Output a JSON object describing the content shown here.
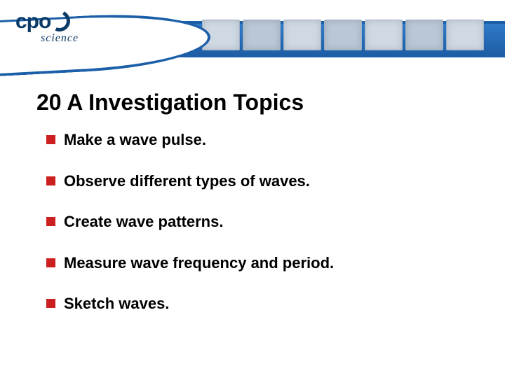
{
  "logo": {
    "primary": "cpo",
    "secondary": "science",
    "brand_color": "#0a3a67"
  },
  "header": {
    "band_top_color": "#1b5fa8",
    "band_gradient_from": "#2f7ac7",
    "band_gradient_to": "#1e5ea6"
  },
  "title": "20 A  Investigation Topics",
  "title_fontsize": 32,
  "title_color": "#000000",
  "bullet_marker_color": "#cc1f1f",
  "bullet_fontsize": 22,
  "bullet_color": "#000000",
  "bullets": [
    {
      "text": "Make a wave pulse."
    },
    {
      "text": "Observe different types of waves."
    },
    {
      "text": "Create wave patterns."
    },
    {
      "text": "Measure wave frequency and period."
    },
    {
      "text": "Sketch waves."
    }
  ]
}
